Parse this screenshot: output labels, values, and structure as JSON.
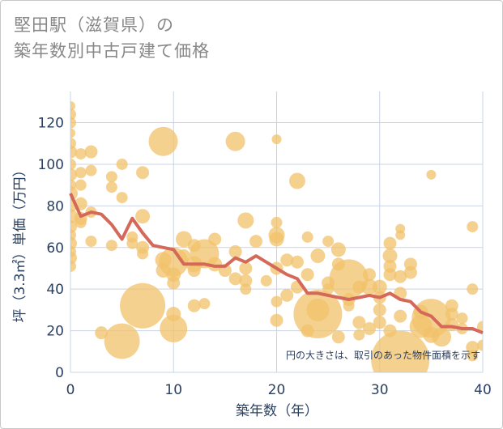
{
  "title": {
    "line1": "堅田駅（滋賀県）の",
    "line2": "築年数別中古戸建て価格"
  },
  "colors": {
    "bubble": "#f2c26b",
    "line": "#d4695a",
    "grid": "#c8d4e3",
    "axis_text": "#2a3f5f",
    "title_text": "#888888"
  },
  "chart_data": {
    "type": "scatter",
    "title": "堅田駅（滋賀県）の築年数別中古戸建て価格",
    "xlabel": "築年数（年）",
    "ylabel": "坪（3.3㎡）単価（万円）",
    "xlim": [
      0,
      40
    ],
    "ylim": [
      0,
      135
    ],
    "x_ticks": [
      0,
      10,
      20,
      30,
      40
    ],
    "y_ticks": [
      0,
      20,
      40,
      60,
      80,
      100,
      120
    ],
    "grid": true,
    "annotation": "円の大きさは、取引のあった物件面積を示す",
    "bubbles": [
      {
        "x": 0,
        "y": 128,
        "s": 6
      },
      {
        "x": 0,
        "y": 124,
        "s": 7
      },
      {
        "x": 0,
        "y": 120,
        "s": 7
      },
      {
        "x": 0,
        "y": 115,
        "s": 6
      },
      {
        "x": 0,
        "y": 110,
        "s": 7
      },
      {
        "x": 0,
        "y": 106,
        "s": 8
      },
      {
        "x": 0,
        "y": 100,
        "s": 7
      },
      {
        "x": 0,
        "y": 95,
        "s": 8
      },
      {
        "x": 0,
        "y": 90,
        "s": 7
      },
      {
        "x": 0,
        "y": 86,
        "s": 9
      },
      {
        "x": 0,
        "y": 80,
        "s": 8
      },
      {
        "x": 0,
        "y": 75,
        "s": 9
      },
      {
        "x": 0,
        "y": 70,
        "s": 8
      },
      {
        "x": 0,
        "y": 66,
        "s": 7
      },
      {
        "x": 0,
        "y": 62,
        "s": 8
      },
      {
        "x": 0,
        "y": 58,
        "s": 7
      },
      {
        "x": 0,
        "y": 55,
        "s": 8
      },
      {
        "x": 0,
        "y": 51,
        "s": 7
      },
      {
        "x": 1,
        "y": 105,
        "s": 7
      },
      {
        "x": 1,
        "y": 96,
        "s": 7
      },
      {
        "x": 1,
        "y": 90,
        "s": 7
      },
      {
        "x": 1,
        "y": 81,
        "s": 8
      },
      {
        "x": 1,
        "y": 74,
        "s": 8
      },
      {
        "x": 1,
        "y": 72,
        "s": 7
      },
      {
        "x": 2,
        "y": 106,
        "s": 8
      },
      {
        "x": 2,
        "y": 97,
        "s": 7
      },
      {
        "x": 2,
        "y": 77,
        "s": 7
      },
      {
        "x": 2,
        "y": 63,
        "s": 7
      },
      {
        "x": 3,
        "y": 19,
        "s": 8
      },
      {
        "x": 4,
        "y": 94,
        "s": 7
      },
      {
        "x": 4,
        "y": 89,
        "s": 7
      },
      {
        "x": 4,
        "y": 61,
        "s": 7
      },
      {
        "x": 5,
        "y": 100,
        "s": 7
      },
      {
        "x": 5,
        "y": 84,
        "s": 7
      },
      {
        "x": 5,
        "y": 15,
        "s": 22
      },
      {
        "x": 6,
        "y": 62,
        "s": 7
      },
      {
        "x": 6,
        "y": 65,
        "s": 7
      },
      {
        "x": 7,
        "y": 96,
        "s": 8
      },
      {
        "x": 7,
        "y": 75,
        "s": 9
      },
      {
        "x": 7,
        "y": 60,
        "s": 8
      },
      {
        "x": 7,
        "y": 57,
        "s": 7
      },
      {
        "x": 7,
        "y": 32,
        "s": 28
      },
      {
        "x": 9,
        "y": 111,
        "s": 18
      },
      {
        "x": 9,
        "y": 54,
        "s": 10
      },
      {
        "x": 9,
        "y": 49,
        "s": 9
      },
      {
        "x": 10,
        "y": 53,
        "s": 18
      },
      {
        "x": 10,
        "y": 47,
        "s": 9
      },
      {
        "x": 10,
        "y": 43,
        "s": 8
      },
      {
        "x": 10,
        "y": 28,
        "s": 9
      },
      {
        "x": 10,
        "y": 21,
        "s": 17
      },
      {
        "x": 11,
        "y": 64,
        "s": 10
      },
      {
        "x": 11,
        "y": 56,
        "s": 8
      },
      {
        "x": 12,
        "y": 61,
        "s": 8
      },
      {
        "x": 12,
        "y": 52,
        "s": 10
      },
      {
        "x": 12,
        "y": 49,
        "s": 8
      },
      {
        "x": 12,
        "y": 32,
        "s": 8
      },
      {
        "x": 13,
        "y": 57,
        "s": 18
      },
      {
        "x": 13,
        "y": 33,
        "s": 7
      },
      {
        "x": 14,
        "y": 64,
        "s": 8
      },
      {
        "x": 14,
        "y": 52,
        "s": 9
      },
      {
        "x": 15,
        "y": 49,
        "s": 8
      },
      {
        "x": 16,
        "y": 111,
        "s": 12
      },
      {
        "x": 16,
        "y": 58,
        "s": 8
      },
      {
        "x": 16,
        "y": 45,
        "s": 8
      },
      {
        "x": 17,
        "y": 73,
        "s": 10
      },
      {
        "x": 17,
        "y": 50,
        "s": 8
      },
      {
        "x": 17,
        "y": 44,
        "s": 8
      },
      {
        "x": 17,
        "y": 40,
        "s": 7
      },
      {
        "x": 18,
        "y": 63,
        "s": 8
      },
      {
        "x": 19,
        "y": 44,
        "s": 7
      },
      {
        "x": 20,
        "y": 112,
        "s": 6
      },
      {
        "x": 20,
        "y": 72,
        "s": 7
      },
      {
        "x": 20,
        "y": 66,
        "s": 10
      },
      {
        "x": 20,
        "y": 64,
        "s": 9
      },
      {
        "x": 20,
        "y": 50,
        "s": 8
      },
      {
        "x": 20,
        "y": 34,
        "s": 7
      },
      {
        "x": 20,
        "y": 25,
        "s": 8
      },
      {
        "x": 21,
        "y": 54,
        "s": 8
      },
      {
        "x": 21,
        "y": 37,
        "s": 8
      },
      {
        "x": 22,
        "y": 92,
        "s": 10
      },
      {
        "x": 22,
        "y": 53,
        "s": 8
      },
      {
        "x": 22,
        "y": 41,
        "s": 8
      },
      {
        "x": 23,
        "y": 65,
        "s": 7
      },
      {
        "x": 23,
        "y": 47,
        "s": 8
      },
      {
        "x": 23,
        "y": 20,
        "s": 8
      },
      {
        "x": 24,
        "y": 56,
        "s": 9
      },
      {
        "x": 24,
        "y": 28,
        "s": 30
      },
      {
        "x": 24,
        "y": 30,
        "s": 14
      },
      {
        "x": 25,
        "y": 63,
        "s": 7
      },
      {
        "x": 25,
        "y": 43,
        "s": 8
      },
      {
        "x": 25,
        "y": 40,
        "s": 7
      },
      {
        "x": 26,
        "y": 59,
        "s": 9
      },
      {
        "x": 26,
        "y": 52,
        "s": 8
      },
      {
        "x": 26,
        "y": 17,
        "s": 8
      },
      {
        "x": 27,
        "y": 45,
        "s": 24
      },
      {
        "x": 27,
        "y": 35,
        "s": 8
      },
      {
        "x": 27,
        "y": 32,
        "s": 7
      },
      {
        "x": 28,
        "y": 41,
        "s": 8
      },
      {
        "x": 28,
        "y": 24,
        "s": 8
      },
      {
        "x": 28,
        "y": 18,
        "s": 7
      },
      {
        "x": 29,
        "y": 47,
        "s": 8
      },
      {
        "x": 29,
        "y": 41,
        "s": 10
      },
      {
        "x": 29,
        "y": 21,
        "s": 8
      },
      {
        "x": 30,
        "y": 41,
        "s": 9
      },
      {
        "x": 30,
        "y": 36,
        "s": 8
      },
      {
        "x": 30,
        "y": 30,
        "s": 8
      },
      {
        "x": 30,
        "y": 24,
        "s": 8
      },
      {
        "x": 31,
        "y": 62,
        "s": 8
      },
      {
        "x": 31,
        "y": 56,
        "s": 9
      },
      {
        "x": 31,
        "y": 51,
        "s": 8
      },
      {
        "x": 31,
        "y": 47,
        "s": 8
      },
      {
        "x": 31,
        "y": 20,
        "s": 8
      },
      {
        "x": 32,
        "y": 69,
        "s": 6
      },
      {
        "x": 32,
        "y": 66,
        "s": 6
      },
      {
        "x": 32,
        "y": 46,
        "s": 8
      },
      {
        "x": 32,
        "y": 38,
        "s": 8
      },
      {
        "x": 32,
        "y": 6,
        "s": 36
      },
      {
        "x": 32,
        "y": 27,
        "s": 8
      },
      {
        "x": 33,
        "y": 52,
        "s": 8
      },
      {
        "x": 33,
        "y": 48,
        "s": 8
      },
      {
        "x": 34,
        "y": 29,
        "s": 9
      },
      {
        "x": 34,
        "y": 22,
        "s": 14
      },
      {
        "x": 35,
        "y": 95,
        "s": 6
      },
      {
        "x": 35,
        "y": 26,
        "s": 24
      },
      {
        "x": 35,
        "y": 18,
        "s": 10
      },
      {
        "x": 36,
        "y": 17,
        "s": 12
      },
      {
        "x": 37,
        "y": 32,
        "s": 8
      },
      {
        "x": 37,
        "y": 28,
        "s": 8
      },
      {
        "x": 37,
        "y": 23,
        "s": 8
      },
      {
        "x": 38,
        "y": 26,
        "s": 7
      },
      {
        "x": 38,
        "y": 21,
        "s": 7
      },
      {
        "x": 39,
        "y": 70,
        "s": 7
      },
      {
        "x": 39,
        "y": 40,
        "s": 7
      },
      {
        "x": 39,
        "y": 12,
        "s": 8
      },
      {
        "x": 39,
        "y": 8,
        "s": 7
      },
      {
        "x": 40,
        "y": 22,
        "s": 7
      },
      {
        "x": 40,
        "y": 13,
        "s": 7
      }
    ],
    "trend": {
      "x": [
        0,
        1,
        2,
        3,
        4,
        5,
        6,
        7,
        8,
        9,
        10,
        11,
        12,
        13,
        14,
        15,
        16,
        17,
        18,
        19,
        20,
        21,
        22,
        23,
        24,
        25,
        26,
        27,
        28,
        29,
        30,
        31,
        32,
        33,
        34,
        35,
        36,
        37,
        38,
        39,
        40
      ],
      "y": [
        86,
        75,
        77,
        76,
        71,
        64,
        74,
        67,
        61,
        60,
        59,
        52,
        52,
        52,
        51,
        51,
        55,
        53,
        56,
        53,
        50,
        47,
        45,
        38,
        38,
        37,
        36,
        35,
        36,
        37,
        36,
        38,
        35,
        34,
        29,
        27,
        22,
        22,
        21,
        21,
        19
      ]
    }
  }
}
